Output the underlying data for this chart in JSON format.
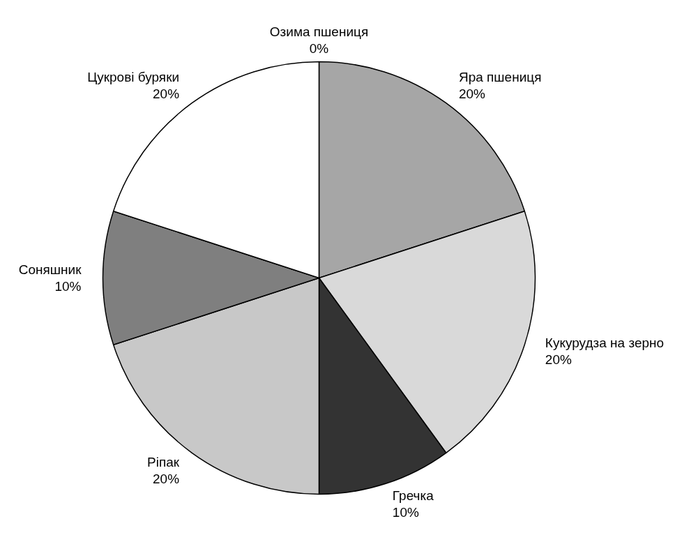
{
  "chart_data": {
    "type": "pie",
    "categories": [
      "Озима пшениця",
      "Яра пшениця",
      "Кукурудза на зерно",
      "Гречка",
      "Ріпак",
      "Соняшник",
      "Цукрові буряки"
    ],
    "values": [
      0,
      20,
      20,
      10,
      20,
      10,
      20
    ],
    "value_labels": [
      "0%",
      "20%",
      "20%",
      "10%",
      "20%",
      "10%",
      "20%"
    ],
    "colors": [
      "#bfbfbf",
      "#a6a6a6",
      "#d9d9d9",
      "#333333",
      "#c8c8c8",
      "#7f7f7f",
      "#ffffff"
    ]
  }
}
